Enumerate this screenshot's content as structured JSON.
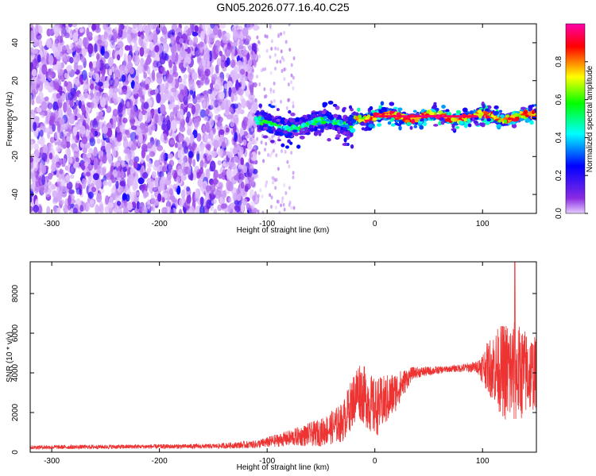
{
  "figure": {
    "title": "GN05.2026.077.16.40.C25"
  },
  "chart_data": [
    {
      "type": "heatmap",
      "xlabel": "Height of straight line (km)",
      "ylabel": "Frequency (Hz)",
      "xlim": [
        -320,
        150
      ],
      "ylim": [
        -50,
        50
      ],
      "x_ticks": [
        -300,
        -200,
        -100,
        0,
        100
      ],
      "y_ticks": [
        -40,
        -20,
        0,
        20,
        40
      ],
      "colorbar": {
        "label": "Normalized spectral amplitude",
        "range": [
          0,
          1
        ],
        "ticks": [
          "0.0",
          "0.2",
          "0.4",
          "0.6",
          "0.8"
        ],
        "colors": [
          "#e6ccff",
          "#8a2be2",
          "#0000ff",
          "#00ffff",
          "#00ff00",
          "#ffff00",
          "#ff0000",
          "#ff00aa"
        ]
      },
      "regions": [
        {
          "x_range": [
            -320,
            -110
          ],
          "freq_range": [
            -50,
            50
          ],
          "amplitude": "0.0-0.15",
          "pattern": "broadband noise"
        },
        {
          "x_range": [
            -110,
            -20
          ],
          "freq_center": -3,
          "freq_width": 10,
          "amplitude": "0.15-0.5"
        },
        {
          "x_range": [
            -20,
            150
          ],
          "freq_center": 1,
          "freq_width": 6,
          "amplitude": "0.5-1.0"
        }
      ]
    },
    {
      "type": "line",
      "xlabel": "Height of straight line (km)",
      "ylabel": "SNR (10 * v/v)",
      "xlim": [
        -320,
        150
      ],
      "ylim": [
        0,
        9600
      ],
      "x_ticks": [
        -300,
        -200,
        -100,
        0,
        100
      ],
      "y_ticks": [
        0,
        2000,
        4000,
        6000,
        8000
      ],
      "series": [
        {
          "color": "#ee3333",
          "envelope": [
            {
              "x": -320,
              "mean": 250,
              "spread": 100
            },
            {
              "x": -150,
              "mean": 300,
              "spread": 120
            },
            {
              "x": -110,
              "mean": 400,
              "spread": 200
            },
            {
              "x": -80,
              "mean": 700,
              "spread": 400
            },
            {
              "x": -50,
              "mean": 1000,
              "spread": 700
            },
            {
              "x": -30,
              "mean": 1500,
              "spread": 1000
            },
            {
              "x": -15,
              "mean": 3200,
              "spread": 1500
            },
            {
              "x": 0,
              "mean": 2200,
              "spread": 1500
            },
            {
              "x": 15,
              "mean": 2800,
              "spread": 1200
            },
            {
              "x": 35,
              "mean": 4000,
              "spread": 300
            },
            {
              "x": 70,
              "mean": 4200,
              "spread": 150
            },
            {
              "x": 95,
              "mean": 4300,
              "spread": 300
            },
            {
              "x": 110,
              "mean": 4300,
              "spread": 1800
            },
            {
              "x": 125,
              "mean": 4000,
              "spread": 2800
            },
            {
              "x": 150,
              "mean": 4000,
              "spread": 1800
            }
          ],
          "peak": {
            "x": 130,
            "y": 9600
          }
        }
      ]
    }
  ]
}
